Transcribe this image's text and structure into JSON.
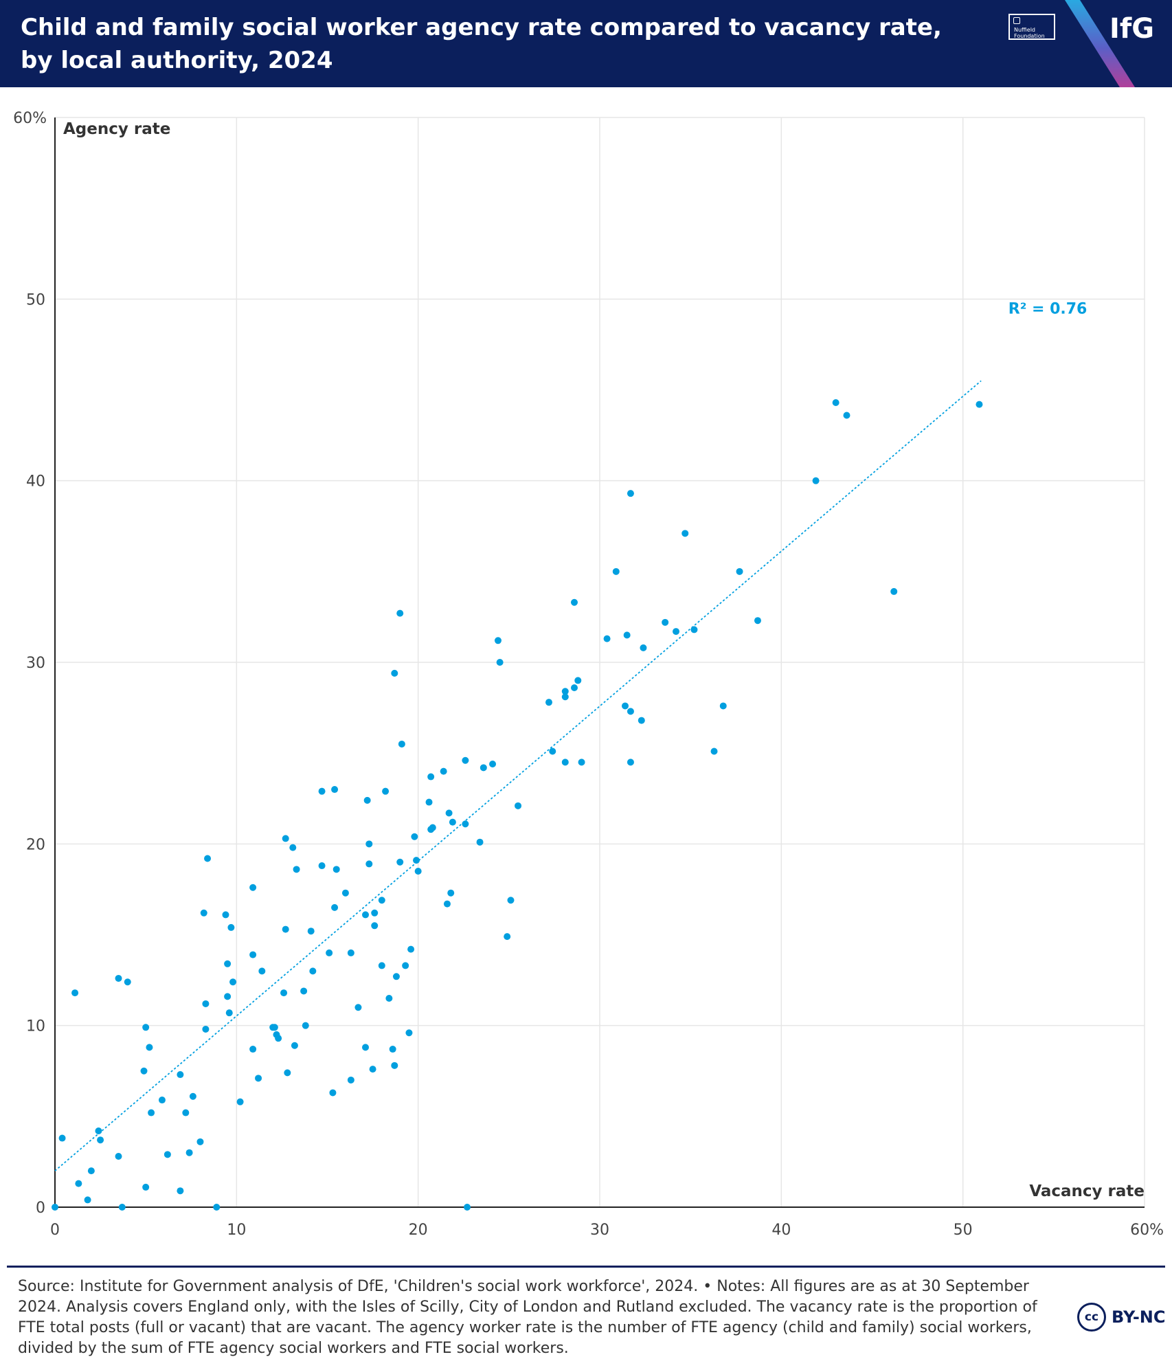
{
  "header": {
    "title": "Child and family social worker agency rate compared to vacancy rate, by local authority, 2024",
    "partner_logo": "Nuffield Foundation",
    "brand_logo": "IfG",
    "background_color": "#0b1f5c"
  },
  "chart_data": {
    "type": "scatter",
    "xlabel": "Vacancy rate",
    "ylabel": "Agency rate",
    "xlim": [
      0,
      60
    ],
    "ylim": [
      0,
      60
    ],
    "x_ticks": [
      0,
      10,
      20,
      30,
      40,
      50,
      60
    ],
    "y_ticks": [
      0,
      10,
      20,
      30,
      40,
      50,
      60
    ],
    "x_tick_labels": [
      "0",
      "10",
      "20",
      "30",
      "40",
      "50",
      "60%"
    ],
    "y_tick_labels": [
      "0",
      "10",
      "20",
      "30",
      "40",
      "50",
      "60%"
    ],
    "grid": true,
    "point_color": "#009fdf",
    "trendline": {
      "style": "dotted",
      "color": "#009fdf",
      "start": [
        0,
        2.0
      ],
      "end": [
        51,
        45.5
      ],
      "r2_label": "R² = 0.76",
      "r2_label_position": [
        52.5,
        49.2
      ]
    },
    "points": [
      [
        0,
        0
      ],
      [
        0.4,
        3.8
      ],
      [
        1.1,
        11.8
      ],
      [
        1.3,
        1.3
      ],
      [
        1.8,
        0.4
      ],
      [
        2.0,
        2.0
      ],
      [
        2.4,
        4.2
      ],
      [
        2.5,
        3.7
      ],
      [
        3.5,
        12.6
      ],
      [
        3.5,
        2.8
      ],
      [
        3.7,
        0
      ],
      [
        4.0,
        12.4
      ],
      [
        4.9,
        7.5
      ],
      [
        5.0,
        9.9
      ],
      [
        5.0,
        1.1
      ],
      [
        5.2,
        8.8
      ],
      [
        5.3,
        5.2
      ],
      [
        5.9,
        5.9
      ],
      [
        6.2,
        2.9
      ],
      [
        6.9,
        7.3
      ],
      [
        6.9,
        0.9
      ],
      [
        7.2,
        5.2
      ],
      [
        7.4,
        3.0
      ],
      [
        7.6,
        6.1
      ],
      [
        8.0,
        3.6
      ],
      [
        8.2,
        16.2
      ],
      [
        8.3,
        9.8
      ],
      [
        8.3,
        11.2
      ],
      [
        8.4,
        19.2
      ],
      [
        8.9,
        0
      ],
      [
        9.4,
        16.1
      ],
      [
        9.5,
        13.4
      ],
      [
        9.5,
        11.6
      ],
      [
        9.6,
        10.7
      ],
      [
        9.7,
        15.4
      ],
      [
        9.8,
        12.4
      ],
      [
        10.2,
        5.8
      ],
      [
        10.9,
        17.6
      ],
      [
        10.9,
        13.9
      ],
      [
        10.9,
        8.7
      ],
      [
        11.2,
        7.1
      ],
      [
        11.4,
        13.0
      ],
      [
        12.0,
        9.9
      ],
      [
        12.1,
        9.9
      ],
      [
        12.2,
        9.5
      ],
      [
        12.3,
        9.3
      ],
      [
        12.6,
        11.8
      ],
      [
        12.7,
        15.3
      ],
      [
        12.7,
        20.3
      ],
      [
        12.8,
        7.4
      ],
      [
        13.1,
        19.8
      ],
      [
        13.2,
        8.9
      ],
      [
        13.3,
        18.6
      ],
      [
        13.7,
        11.9
      ],
      [
        13.8,
        10.0
      ],
      [
        14.1,
        15.2
      ],
      [
        14.2,
        13.0
      ],
      [
        14.7,
        18.8
      ],
      [
        14.7,
        22.9
      ],
      [
        15.1,
        14.0
      ],
      [
        15.3,
        6.3
      ],
      [
        15.4,
        23.0
      ],
      [
        15.4,
        16.5
      ],
      [
        15.5,
        18.6
      ],
      [
        16.0,
        17.3
      ],
      [
        16.3,
        14.0
      ],
      [
        16.3,
        7.0
      ],
      [
        16.7,
        11.0
      ],
      [
        17.1,
        8.8
      ],
      [
        17.1,
        16.1
      ],
      [
        17.2,
        22.4
      ],
      [
        17.3,
        18.9
      ],
      [
        17.3,
        20.0
      ],
      [
        17.5,
        7.6
      ],
      [
        17.6,
        15.5
      ],
      [
        17.6,
        16.2
      ],
      [
        18.0,
        13.3
      ],
      [
        18.0,
        16.9
      ],
      [
        18.2,
        22.9
      ],
      [
        18.4,
        11.5
      ],
      [
        18.6,
        8.7
      ],
      [
        18.7,
        7.8
      ],
      [
        18.7,
        29.4
      ],
      [
        18.8,
        12.7
      ],
      [
        19.0,
        32.7
      ],
      [
        19.0,
        19.0
      ],
      [
        19.1,
        25.5
      ],
      [
        19.3,
        13.3
      ],
      [
        19.5,
        9.6
      ],
      [
        19.6,
        14.2
      ],
      [
        19.8,
        20.4
      ],
      [
        19.9,
        19.1
      ],
      [
        20.0,
        18.5
      ],
      [
        20.6,
        22.3
      ],
      [
        20.7,
        23.7
      ],
      [
        20.7,
        20.8
      ],
      [
        20.8,
        20.9
      ],
      [
        21.4,
        24.0
      ],
      [
        21.6,
        16.7
      ],
      [
        21.7,
        21.7
      ],
      [
        21.8,
        17.3
      ],
      [
        21.9,
        21.2
      ],
      [
        22.6,
        24.6
      ],
      [
        22.6,
        21.1
      ],
      [
        22.7,
        0
      ],
      [
        23.4,
        20.1
      ],
      [
        23.6,
        24.2
      ],
      [
        24.1,
        24.4
      ],
      [
        24.4,
        31.2
      ],
      [
        24.5,
        30.0
      ],
      [
        24.9,
        14.9
      ],
      [
        25.1,
        16.9
      ],
      [
        25.5,
        22.1
      ],
      [
        27.2,
        27.8
      ],
      [
        27.4,
        25.1
      ],
      [
        28.1,
        28.4
      ],
      [
        28.1,
        24.5
      ],
      [
        28.1,
        28.1
      ],
      [
        28.6,
        33.3
      ],
      [
        28.6,
        28.6
      ],
      [
        28.8,
        29.0
      ],
      [
        29.0,
        24.5
      ],
      [
        30.4,
        31.3
      ],
      [
        30.9,
        35.0
      ],
      [
        31.4,
        27.6
      ],
      [
        31.5,
        31.5
      ],
      [
        31.7,
        39.3
      ],
      [
        31.7,
        27.3
      ],
      [
        31.7,
        24.5
      ],
      [
        32.3,
        26.8
      ],
      [
        32.4,
        30.8
      ],
      [
        33.6,
        32.2
      ],
      [
        34.2,
        31.7
      ],
      [
        34.7,
        37.1
      ],
      [
        35.2,
        31.8
      ],
      [
        36.3,
        25.1
      ],
      [
        36.8,
        27.6
      ],
      [
        37.7,
        35.0
      ],
      [
        38.7,
        32.3
      ],
      [
        41.9,
        40.0
      ],
      [
        43.0,
        44.3
      ],
      [
        43.6,
        43.6
      ],
      [
        46.2,
        33.9
      ],
      [
        50.9,
        44.2
      ]
    ]
  },
  "footer": {
    "source_note": "Source: Institute for Government analysis of DfE, 'Children's social work workforce', 2024. • Notes: All figures are as at 30 September 2024. Analysis covers England only, with the Isles of Scilly, City of London and Rutland excluded. The vacancy rate is the proportion of FTE total posts (full or vacant) that are vacant. The agency worker rate is the number of FTE agency (child and family) social workers, divided by the sum of FTE agency social workers and FTE social workers.",
    "cc_badge": "cc",
    "license": "BY-NC"
  }
}
